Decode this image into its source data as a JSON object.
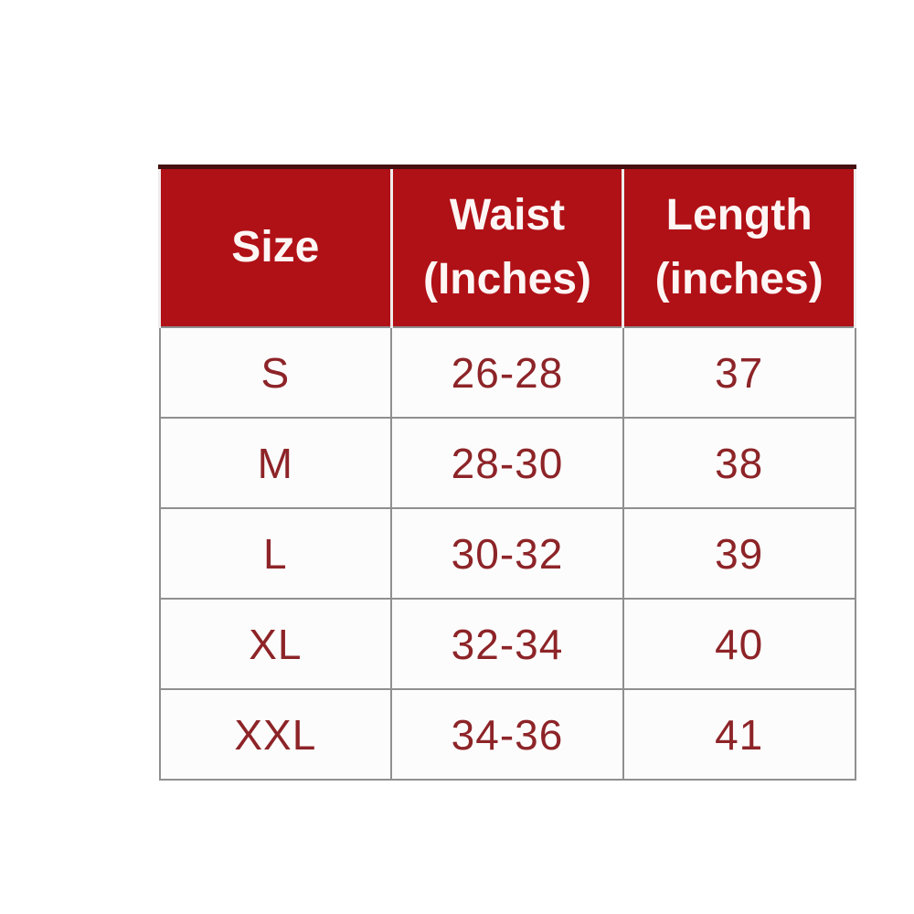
{
  "chart_data": {
    "type": "table",
    "columns": [
      "Size",
      "Waist (Inches)",
      "Length (inches)"
    ],
    "rows": [
      [
        "S",
        "26-28",
        "37"
      ],
      [
        "M",
        "28-30",
        "38"
      ],
      [
        "L",
        "30-32",
        "39"
      ],
      [
        "XL",
        "32-34",
        "40"
      ],
      [
        "XXL",
        "34-36",
        "41"
      ]
    ],
    "layout": {
      "grid": "on",
      "header_position": "top"
    }
  },
  "colors": {
    "header_bg": "#b01116",
    "header_text": "#fdf6f5",
    "header_top_border": "#45100f",
    "header_divider": "#efecec",
    "cell_text": "#8d2428",
    "grid_border": "#8f8f8f",
    "cell_bg": "#fdfcfc",
    "page_bg": "#ffffff"
  }
}
